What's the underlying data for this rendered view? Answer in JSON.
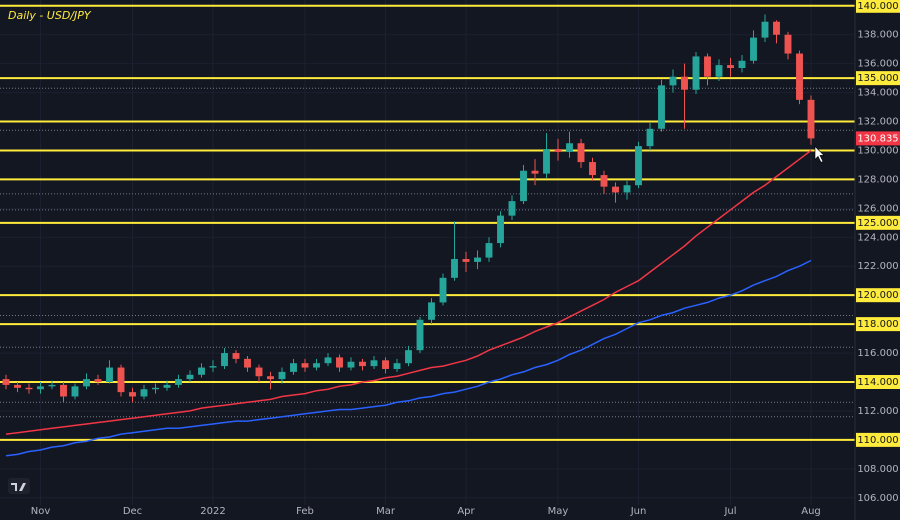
{
  "chart_data": {
    "type": "candlestick",
    "title": "Daily - USD/JPY",
    "categories": [
      null,
      null,
      null,
      "Nov",
      null,
      null,
      null,
      null,
      null,
      null,
      null,
      "Dec",
      null,
      null,
      null,
      null,
      null,
      null,
      "2022",
      null,
      null,
      null,
      null,
      null,
      null,
      null,
      "Feb",
      null,
      null,
      null,
      null,
      null,
      null,
      "Mar",
      null,
      null,
      null,
      null,
      null,
      null,
      "Apr",
      null,
      null,
      null,
      null,
      null,
      null,
      null,
      "May",
      null,
      null,
      null,
      null,
      null,
      null,
      "Jun",
      null,
      null,
      null,
      null,
      null,
      null,
      null,
      "Jul",
      null,
      null,
      null,
      null,
      null,
      null,
      "Aug"
    ],
    "open": [
      114.2,
      113.8,
      113.6,
      113.5,
      113.7,
      113.8,
      113.0,
      113.7,
      114.2,
      114.0,
      115.0,
      113.3,
      113.0,
      113.5,
      113.6,
      113.8,
      114.2,
      114.5,
      115.0,
      115.1,
      116.0,
      115.6,
      115.0,
      114.4,
      114.2,
      114.7,
      115.3,
      115.0,
      115.3,
      115.7,
      115.0,
      115.4,
      115.1,
      115.5,
      114.9,
      115.3,
      116.2,
      118.3,
      119.5,
      121.2,
      122.5,
      122.3,
      122.6,
      123.6,
      125.5,
      126.5,
      128.6,
      128.4,
      130.1,
      129.9,
      130.5,
      129.2,
      128.3,
      127.5,
      127.1,
      127.6,
      130.3,
      131.5,
      134.5,
      135.1,
      134.2,
      136.5,
      135.1,
      135.9,
      135.7,
      136.2,
      137.8,
      138.9,
      138.0,
      136.7,
      133.5
    ],
    "high": [
      114.5,
      114.0,
      113.9,
      114.0,
      114.1,
      114.0,
      113.9,
      114.6,
      114.5,
      115.5,
      115.2,
      113.6,
      113.8,
      113.9,
      114.1,
      114.5,
      114.8,
      115.3,
      115.5,
      116.35,
      116.2,
      115.8,
      115.2,
      114.7,
      115.0,
      115.6,
      115.6,
      115.6,
      116.0,
      115.9,
      115.7,
      115.6,
      115.8,
      115.7,
      115.6,
      116.5,
      118.5,
      119.8,
      121.5,
      125.1,
      123.0,
      123.1,
      124.0,
      125.8,
      126.9,
      129.0,
      129.4,
      131.2,
      130.8,
      131.3,
      130.8,
      129.5,
      128.6,
      127.8,
      127.9,
      130.6,
      131.9,
      134.9,
      135.6,
      136.0,
      136.8,
      136.7,
      136.3,
      136.4,
      136.6,
      138.3,
      139.4,
      139.0,
      138.2,
      136.9,
      133.8
    ],
    "low": [
      113.5,
      113.3,
      113.2,
      113.2,
      113.5,
      112.6,
      112.8,
      113.5,
      113.8,
      113.9,
      113.0,
      112.6,
      112.8,
      113.2,
      113.4,
      113.6,
      114.0,
      114.3,
      114.7,
      114.9,
      115.3,
      114.7,
      114.0,
      113.5,
      113.9,
      114.5,
      114.7,
      114.8,
      115.1,
      114.7,
      114.8,
      114.8,
      114.9,
      114.6,
      114.7,
      115.1,
      116.0,
      118.0,
      119.3,
      121.0,
      121.6,
      121.8,
      122.3,
      123.3,
      125.2,
      126.3,
      127.6,
      128.1,
      129.3,
      129.5,
      128.8,
      127.9,
      127.0,
      126.4,
      126.6,
      127.4,
      130.0,
      131.3,
      134.0,
      131.5,
      133.9,
      134.5,
      134.8,
      135.1,
      135.4,
      136.0,
      137.5,
      137.4,
      136.3,
      133.2,
      130.4
    ],
    "close": [
      113.8,
      113.6,
      113.5,
      113.7,
      113.8,
      113.0,
      113.7,
      114.2,
      114.0,
      115.0,
      113.3,
      113.0,
      113.5,
      113.6,
      113.8,
      114.2,
      114.5,
      115.0,
      115.1,
      116.0,
      115.6,
      115.0,
      114.4,
      114.2,
      114.7,
      115.3,
      115.0,
      115.3,
      115.7,
      115.0,
      115.4,
      115.1,
      115.5,
      114.9,
      115.3,
      116.2,
      118.3,
      119.5,
      121.2,
      122.5,
      122.3,
      122.6,
      123.6,
      125.5,
      126.5,
      128.6,
      128.4,
      130.1,
      129.9,
      130.5,
      129.2,
      128.3,
      127.5,
      127.1,
      127.6,
      130.3,
      131.5,
      134.5,
      135.1,
      134.2,
      136.5,
      135.1,
      135.9,
      135.7,
      136.2,
      137.8,
      138.9,
      138.0,
      136.7,
      133.5,
      130.835
    ],
    "up_color": "#26a69a",
    "down_color": "#ef5350",
    "series": [
      {
        "color": "#f23645",
        "values": [
          110.4,
          110.5,
          110.6,
          110.7,
          110.8,
          110.9,
          111.0,
          111.1,
          111.2,
          111.3,
          111.4,
          111.5,
          111.6,
          111.7,
          111.8,
          111.9,
          112.0,
          112.2,
          112.3,
          112.4,
          112.5,
          112.6,
          112.7,
          112.8,
          113.0,
          113.1,
          113.2,
          113.4,
          113.5,
          113.7,
          113.8,
          114.0,
          114.1,
          114.3,
          114.4,
          114.6,
          114.8,
          115.0,
          115.1,
          115.3,
          115.5,
          115.8,
          116.2,
          116.5,
          116.8,
          117.1,
          117.5,
          117.8,
          118.1,
          118.5,
          118.9,
          119.3,
          119.7,
          120.2,
          120.6,
          121.0,
          121.6,
          122.2,
          122.8,
          123.4,
          124.1,
          124.7,
          125.3,
          125.9,
          126.5,
          127.1,
          127.6,
          128.2,
          128.8,
          129.4,
          130.0
        ]
      },
      {
        "color": "#2962ff",
        "values": [
          108.9,
          109.0,
          109.2,
          109.3,
          109.5,
          109.6,
          109.8,
          109.9,
          110.1,
          110.2,
          110.4,
          110.5,
          110.6,
          110.7,
          110.8,
          110.8,
          110.9,
          111.0,
          111.1,
          111.2,
          111.3,
          111.3,
          111.4,
          111.5,
          111.6,
          111.7,
          111.8,
          111.9,
          112.0,
          112.1,
          112.1,
          112.2,
          112.3,
          112.4,
          112.6,
          112.7,
          112.9,
          113.0,
          113.2,
          113.3,
          113.5,
          113.7,
          114.0,
          114.2,
          114.5,
          114.7,
          115.0,
          115.2,
          115.5,
          115.9,
          116.2,
          116.6,
          117.0,
          117.3,
          117.7,
          118.1,
          118.3,
          118.6,
          118.8,
          119.1,
          119.3,
          119.5,
          119.8,
          120.0,
          120.3,
          120.7,
          121.0,
          121.3,
          121.7,
          122.0,
          122.4
        ]
      }
    ],
    "ylim": [
      105.5,
      140.4
    ],
    "yticks": [
      {
        "value": 106,
        "label": "106.000"
      },
      {
        "value": 108,
        "label": "108.000"
      },
      {
        "value": 110,
        "label": "110.000",
        "highlight": true
      },
      {
        "value": 112,
        "label": "112.000"
      },
      {
        "value": 114,
        "label": "114.000",
        "highlight": true
      },
      {
        "value": 116,
        "label": "116.000"
      },
      {
        "value": 118,
        "label": "118.000",
        "highlight": true
      },
      {
        "value": 120,
        "label": "120.000",
        "highlight": true
      },
      {
        "value": 122,
        "label": "122.000"
      },
      {
        "value": 124,
        "label": "124.000"
      },
      {
        "value": 125,
        "label": "125.000",
        "highlight": true
      },
      {
        "value": 126,
        "label": "126.000"
      },
      {
        "value": 128,
        "label": "128.000"
      },
      {
        "value": 130,
        "label": "130.000"
      },
      {
        "value": 132,
        "label": "132.000"
      },
      {
        "value": 134,
        "label": "134.000"
      },
      {
        "value": 135,
        "label": "135.000",
        "highlight": true
      },
      {
        "value": 136,
        "label": "136.000"
      },
      {
        "value": 138,
        "label": "138.000"
      },
      {
        "value": 140,
        "label": "140.000",
        "highlight": true
      }
    ],
    "levels": [
      140,
      135,
      132,
      130,
      128,
      125,
      120,
      118,
      114,
      110
    ],
    "level_color": "#ffeb3b",
    "dotted_levels": [
      134.3,
      131.4,
      127.0,
      125.9,
      118.6,
      116.4,
      112.6,
      111.6
    ],
    "last_price": {
      "value": 130.835,
      "label": "130.835"
    },
    "last_price_color": "#f23645",
    "grid": true
  }
}
